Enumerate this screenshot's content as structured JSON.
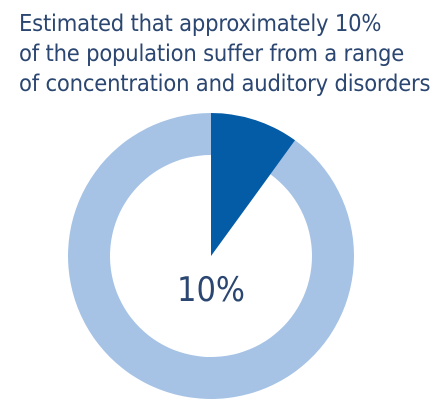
{
  "chart_data": {
    "type": "pie",
    "title_lines": [
      "Estimated that approximately 10%",
      "of the population suffer from a range",
      "of concentration and auditory disorders"
    ],
    "slices": [
      {
        "value": 10,
        "color": "#045ca6"
      },
      {
        "value": 90,
        "color": "#a6c3e6"
      }
    ],
    "center_label": "10%",
    "donut": true
  }
}
